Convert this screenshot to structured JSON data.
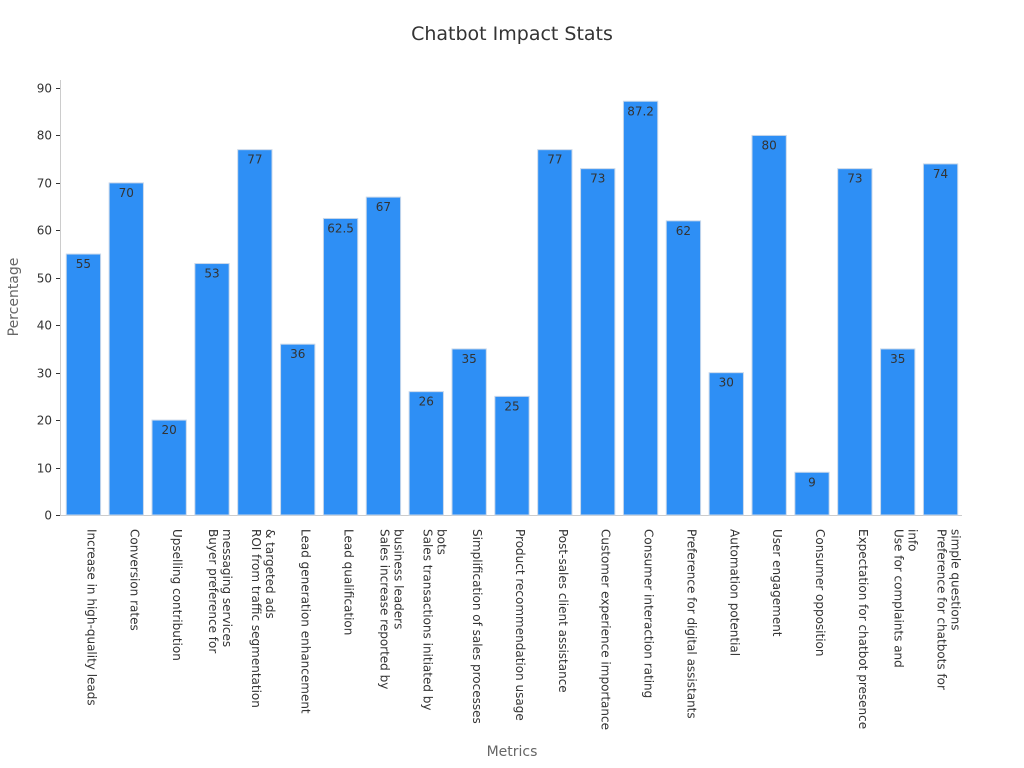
{
  "chart_data": {
    "type": "bar",
    "title": "Chatbot Impact Stats",
    "xlabel": "Metrics",
    "ylabel": "Percentage",
    "ylim": [
      0,
      92
    ],
    "yticks": [
      0,
      10,
      20,
      30,
      40,
      50,
      60,
      70,
      80,
      90
    ],
    "grid": false,
    "bar_color": "#2e8ff5",
    "categories": [
      [
        "Increase in high-quality leads"
      ],
      [
        "Conversion rates"
      ],
      [
        "Upselling contribution"
      ],
      [
        "Buyer preference for",
        "messaging services"
      ],
      [
        "ROI from traffic segmentation",
        "& targeted ads"
      ],
      [
        "Lead generation enhancement"
      ],
      [
        "Lead qualification"
      ],
      [
        "Sales increase reported by",
        "business leaders"
      ],
      [
        "Sales transactions initiated by",
        "bots"
      ],
      [
        "Simplification of sales processes"
      ],
      [
        "Product recommendation usage"
      ],
      [
        "Post-sales client assistance"
      ],
      [
        "Customer experience importance"
      ],
      [
        "Consumer interaction rating"
      ],
      [
        "Preference for digital assistants"
      ],
      [
        "Automation potential"
      ],
      [
        "User engagement"
      ],
      [
        "Consumer opposition"
      ],
      [
        "Expectation for chatbot presence"
      ],
      [
        "Use for complaints and",
        "info"
      ],
      [
        "Preference for chatbots for",
        "simple questions"
      ]
    ],
    "values": [
      55,
      70,
      20,
      53,
      77,
      36,
      62.5,
      67,
      26,
      35,
      25,
      77,
      73,
      87.2,
      62,
      30,
      80,
      9,
      73,
      35,
      74
    ]
  }
}
